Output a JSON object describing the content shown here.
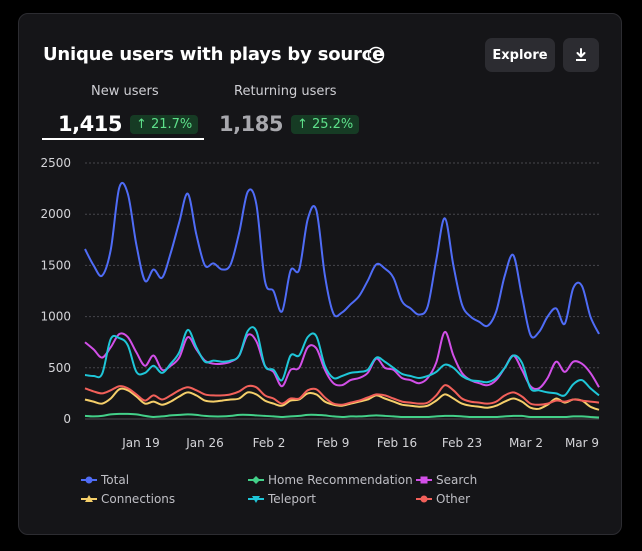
{
  "header": {
    "title": "Unique users with plays by source",
    "explore_label": "Explore"
  },
  "tabs": [
    {
      "label": "New users",
      "value": "1,415",
      "change": "↑ 21.7%",
      "active": true
    },
    {
      "label": "Returning users",
      "value": "1,185",
      "change": "↑ 25.2%",
      "active": false
    }
  ],
  "colors": {
    "Total": "#4f6cf6",
    "Home Recommendation": "#43d089",
    "Search": "#d24fe8",
    "Connections": "#f5cf6a",
    "Teleport": "#1fc6d8",
    "Other": "#f2605a",
    "badge_bg": "#163b24",
    "badge_text": "#5ee08a"
  },
  "chart_data": {
    "type": "line",
    "ylim": [
      0,
      2500
    ],
    "yticks": [
      "0",
      "500",
      "1000",
      "1500",
      "2000",
      "2500"
    ],
    "xtick_labels": [
      "Jan 19",
      "Jan 26",
      "Feb 2",
      "Feb 9",
      "Feb 16",
      "Feb 23",
      "Mar 2",
      "Mar 9"
    ],
    "grid": true,
    "legend_position": "bottom",
    "series": [
      {
        "name": "Total",
        "values": [
          1660,
          1500,
          1400,
          1650,
          2260,
          2200,
          1700,
          1350,
          1460,
          1380,
          1620,
          1920,
          2200,
          1800,
          1500,
          1520,
          1460,
          1510,
          1820,
          2220,
          2100,
          1350,
          1250,
          1050,
          1450,
          1460,
          1950,
          2040,
          1400,
          1030,
          1040,
          1120,
          1200,
          1350,
          1510,
          1470,
          1380,
          1150,
          1080,
          1020,
          1100,
          1550,
          1960,
          1500,
          1120,
          1000,
          950,
          910,
          1050,
          1400,
          1600,
          1200,
          820,
          850,
          1000,
          1080,
          930,
          1280,
          1300,
          1000,
          830
        ]
      },
      {
        "name": "Home Recommendation",
        "values": [
          30,
          25,
          30,
          45,
          50,
          50,
          45,
          30,
          20,
          25,
          35,
          40,
          45,
          40,
          30,
          25,
          25,
          30,
          40,
          40,
          35,
          30,
          25,
          20,
          25,
          30,
          40,
          40,
          35,
          25,
          20,
          25,
          25,
          30,
          35,
          30,
          25,
          20,
          20,
          20,
          20,
          25,
          30,
          30,
          25,
          20,
          20,
          20,
          20,
          25,
          30,
          30,
          20,
          20,
          20,
          20,
          20,
          25,
          25,
          20,
          15
        ]
      },
      {
        "name": "Search",
        "values": [
          750,
          680,
          600,
          700,
          830,
          800,
          650,
          520,
          620,
          480,
          520,
          600,
          800,
          680,
          570,
          540,
          540,
          560,
          620,
          820,
          760,
          520,
          460,
          320,
          480,
          500,
          700,
          690,
          480,
          350,
          330,
          380,
          400,
          450,
          590,
          500,
          480,
          400,
          380,
          350,
          400,
          550,
          850,
          620,
          450,
          380,
          350,
          330,
          380,
          500,
          620,
          480,
          320,
          300,
          400,
          560,
          460,
          560,
          540,
          450,
          310
        ]
      },
      {
        "name": "Connections",
        "values": [
          190,
          170,
          150,
          200,
          290,
          280,
          220,
          150,
          170,
          140,
          170,
          220,
          260,
          230,
          180,
          170,
          180,
          190,
          200,
          260,
          240,
          180,
          150,
          130,
          180,
          190,
          250,
          240,
          170,
          140,
          130,
          150,
          170,
          190,
          230,
          200,
          170,
          140,
          130,
          120,
          130,
          180,
          240,
          200,
          150,
          130,
          120,
          110,
          130,
          170,
          200,
          170,
          110,
          100,
          140,
          200,
          160,
          190,
          180,
          120,
          90
        ]
      },
      {
        "name": "Teleport",
        "values": [
          430,
          420,
          440,
          780,
          790,
          720,
          460,
          450,
          520,
          450,
          540,
          650,
          870,
          700,
          560,
          570,
          560,
          570,
          620,
          860,
          860,
          520,
          480,
          380,
          620,
          620,
          800,
          810,
          520,
          400,
          420,
          450,
          460,
          480,
          600,
          560,
          500,
          440,
          420,
          400,
          420,
          460,
          530,
          500,
          420,
          380,
          370,
          360,
          400,
          500,
          620,
          550,
          300,
          280,
          260,
          250,
          230,
          340,
          380,
          300,
          230
        ]
      },
      {
        "name": "Other",
        "values": [
          300,
          270,
          250,
          280,
          320,
          300,
          240,
          180,
          230,
          190,
          230,
          280,
          310,
          280,
          240,
          230,
          230,
          240,
          270,
          320,
          310,
          230,
          200,
          150,
          200,
          200,
          280,
          290,
          210,
          150,
          140,
          160,
          180,
          210,
          240,
          230,
          200,
          170,
          160,
          150,
          160,
          230,
          330,
          280,
          200,
          170,
          160,
          150,
          170,
          230,
          260,
          220,
          150,
          140,
          150,
          180,
          170,
          190,
          180,
          170,
          160
        ]
      }
    ]
  }
}
